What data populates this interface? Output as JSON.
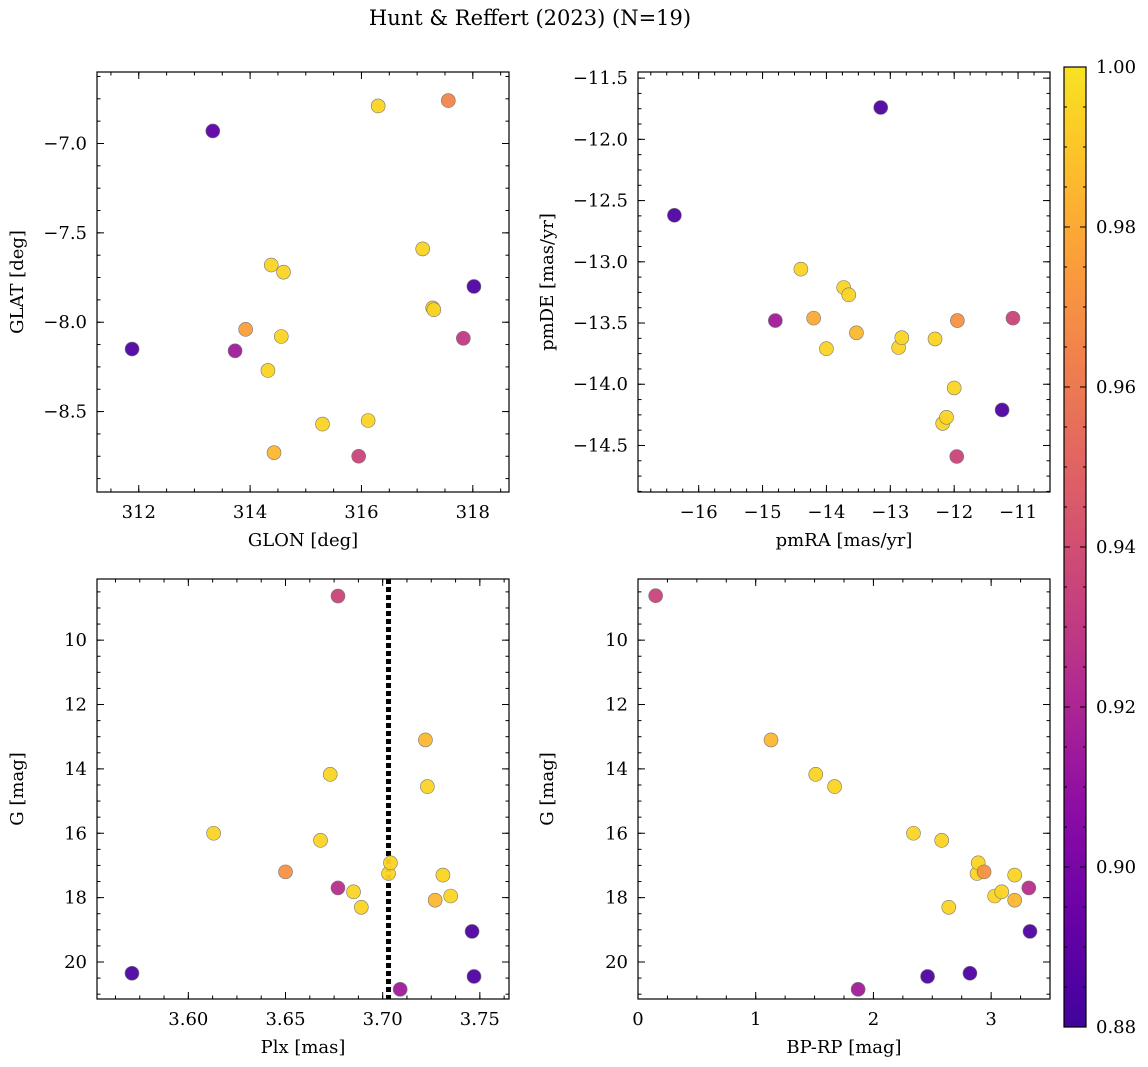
{
  "figure": {
    "title": "Hunt & Reffert (2023) (N=19)"
  },
  "colorbar": {
    "min": 0.88,
    "max": 1.0,
    "ticks": [
      0.88,
      0.9,
      0.92,
      0.94,
      0.96,
      0.98,
      1.0
    ],
    "tick_labels": [
      "0.88",
      "0.90",
      "0.92",
      "0.94",
      "0.96",
      "0.98",
      "1.00"
    ],
    "colormap": "plasma",
    "colormap_range": [
      0.1,
      0.95
    ]
  },
  "chart_data": [
    {
      "type": "scatter",
      "panel": "top-left",
      "xlabel": "GLON [deg]",
      "ylabel": "GLAT [deg]",
      "xlim": [
        311.25,
        318.65
      ],
      "ylim": [
        -8.95,
        -6.6
      ],
      "xticks": [
        312,
        314,
        316,
        318
      ],
      "xtick_labels": [
        "312",
        "314",
        "316",
        "318"
      ],
      "yticks": [
        -8.5,
        -8.0,
        -7.5,
        -7.0
      ],
      "ytick_labels": [
        "−8.5",
        "−8.0",
        "−7.5",
        "−7.0"
      ],
      "points": [
        {
          "x": 311.88,
          "y": -8.15,
          "c": 0.885
        },
        {
          "x": 313.33,
          "y": -6.93,
          "c": 0.89
        },
        {
          "x": 313.73,
          "y": -8.16,
          "c": 0.915
        },
        {
          "x": 313.92,
          "y": -8.04,
          "c": 0.975
        },
        {
          "x": 314.32,
          "y": -8.27,
          "c": 0.995
        },
        {
          "x": 314.38,
          "y": -7.68,
          "c": 0.995
        },
        {
          "x": 314.43,
          "y": -8.73,
          "c": 0.985
        },
        {
          "x": 314.56,
          "y": -8.08,
          "c": 0.995
        },
        {
          "x": 314.6,
          "y": -7.72,
          "c": 0.995
        },
        {
          "x": 315.3,
          "y": -8.57,
          "c": 0.995
        },
        {
          "x": 315.95,
          "y": -8.75,
          "c": 0.935
        },
        {
          "x": 316.12,
          "y": -8.55,
          "c": 0.995
        },
        {
          "x": 316.3,
          "y": -6.79,
          "c": 0.995
        },
        {
          "x": 317.1,
          "y": -7.59,
          "c": 0.995
        },
        {
          "x": 317.28,
          "y": -7.92,
          "c": 0.995
        },
        {
          "x": 317.3,
          "y": -7.93,
          "c": 0.995
        },
        {
          "x": 317.56,
          "y": -6.76,
          "c": 0.965
        },
        {
          "x": 317.83,
          "y": -8.09,
          "c": 0.93
        },
        {
          "x": 318.02,
          "y": -7.8,
          "c": 0.885
        }
      ]
    },
    {
      "type": "scatter",
      "panel": "top-right",
      "xlabel": "pmRA [mas/yr]",
      "ylabel": "pmDE [mas/yr]",
      "xlim": [
        -16.95,
        -10.5
      ],
      "ylim": [
        -14.88,
        -11.45
      ],
      "xticks": [
        -16,
        -15,
        -14,
        -13,
        -12,
        -11
      ],
      "xtick_labels": [
        "−16",
        "−15",
        "−14",
        "−13",
        "−12",
        "−11"
      ],
      "yticks": [
        -14.5,
        -14.0,
        -13.5,
        -13.0,
        -12.5,
        -12.0,
        -11.5
      ],
      "ytick_labels": [
        "−14.5",
        "−14.0",
        "−13.5",
        "−13.0",
        "−12.5",
        "−12.0",
        "−11.5"
      ],
      "points": [
        {
          "x": -16.38,
          "y": -12.62,
          "c": 0.885
        },
        {
          "x": -14.8,
          "y": -13.48,
          "c": 0.915
        },
        {
          "x": -14.4,
          "y": -13.06,
          "c": 0.995
        },
        {
          "x": -14.2,
          "y": -13.46,
          "c": 0.98
        },
        {
          "x": -14.0,
          "y": -13.71,
          "c": 0.995
        },
        {
          "x": -13.73,
          "y": -13.21,
          "c": 0.995
        },
        {
          "x": -13.65,
          "y": -13.27,
          "c": 0.995
        },
        {
          "x": -13.53,
          "y": -13.58,
          "c": 0.985
        },
        {
          "x": -13.15,
          "y": -11.74,
          "c": 0.885
        },
        {
          "x": -12.87,
          "y": -13.7,
          "c": 0.995
        },
        {
          "x": -12.82,
          "y": -13.62,
          "c": 0.995
        },
        {
          "x": -12.3,
          "y": -13.63,
          "c": 0.995
        },
        {
          "x": -12.18,
          "y": -14.32,
          "c": 0.995
        },
        {
          "x": -12.12,
          "y": -14.27,
          "c": 0.995
        },
        {
          "x": -12.0,
          "y": -14.03,
          "c": 0.995
        },
        {
          "x": -11.96,
          "y": -14.59,
          "c": 0.935
        },
        {
          "x": -11.95,
          "y": -13.48,
          "c": 0.97
        },
        {
          "x": -11.25,
          "y": -14.21,
          "c": 0.885
        },
        {
          "x": -11.08,
          "y": -13.46,
          "c": 0.935
        }
      ]
    },
    {
      "type": "scatter",
      "panel": "bottom-left",
      "xlabel": "Plx [mas]",
      "ylabel": "G [mag]",
      "xlim": [
        3.553,
        3.765
      ],
      "ylim": [
        21.15,
        8.1
      ],
      "y_inverted": true,
      "vline": 3.703,
      "xticks": [
        3.6,
        3.65,
        3.7,
        3.75
      ],
      "xtick_labels": [
        "3.60",
        "3.65",
        "3.70",
        "3.75"
      ],
      "yticks": [
        10,
        12,
        14,
        16,
        18,
        20
      ],
      "ytick_labels": [
        "10",
        "12",
        "14",
        "16",
        "18",
        "20"
      ],
      "points": [
        {
          "x": 3.571,
          "y": 20.35,
          "c": 0.885
        },
        {
          "x": 3.613,
          "y": 16.0,
          "c": 0.995
        },
        {
          "x": 3.65,
          "y": 17.2,
          "c": 0.97
        },
        {
          "x": 3.668,
          "y": 16.22,
          "c": 0.995
        },
        {
          "x": 3.673,
          "y": 14.17,
          "c": 0.995
        },
        {
          "x": 3.677,
          "y": 17.7,
          "c": 0.925
        },
        {
          "x": 3.677,
          "y": 8.63,
          "c": 0.935
        },
        {
          "x": 3.685,
          "y": 17.82,
          "c": 0.995
        },
        {
          "x": 3.689,
          "y": 18.3,
          "c": 0.995
        },
        {
          "x": 3.703,
          "y": 17.25,
          "c": 0.995
        },
        {
          "x": 3.704,
          "y": 16.92,
          "c": 0.995
        },
        {
          "x": 3.709,
          "y": 20.85,
          "c": 0.915
        },
        {
          "x": 3.722,
          "y": 13.1,
          "c": 0.985
        },
        {
          "x": 3.723,
          "y": 14.55,
          "c": 0.995
        },
        {
          "x": 3.727,
          "y": 18.08,
          "c": 0.985
        },
        {
          "x": 3.731,
          "y": 17.3,
          "c": 0.995
        },
        {
          "x": 3.735,
          "y": 17.95,
          "c": 0.995
        },
        {
          "x": 3.746,
          "y": 19.05,
          "c": 0.885
        },
        {
          "x": 3.747,
          "y": 20.45,
          "c": 0.885
        }
      ]
    },
    {
      "type": "scatter",
      "panel": "bottom-right",
      "xlabel": "BP-RP [mag]",
      "ylabel": "G [mag]",
      "xlim": [
        0,
        3.5
      ],
      "ylim": [
        21.15,
        8.1
      ],
      "y_inverted": true,
      "xticks": [
        0,
        1,
        2,
        3
      ],
      "xtick_labels": [
        "0",
        "1",
        "2",
        "3"
      ],
      "yticks": [
        10,
        12,
        14,
        16,
        18,
        20
      ],
      "ytick_labels": [
        "10",
        "12",
        "14",
        "16",
        "18",
        "20"
      ],
      "points": [
        {
          "x": 0.15,
          "y": 8.62,
          "c": 0.935
        },
        {
          "x": 1.13,
          "y": 13.1,
          "c": 0.985
        },
        {
          "x": 1.51,
          "y": 14.17,
          "c": 0.995
        },
        {
          "x": 1.67,
          "y": 14.55,
          "c": 0.995
        },
        {
          "x": 1.87,
          "y": 20.85,
          "c": 0.915
        },
        {
          "x": 2.34,
          "y": 16.0,
          "c": 0.995
        },
        {
          "x": 2.46,
          "y": 20.45,
          "c": 0.885
        },
        {
          "x": 2.58,
          "y": 16.22,
          "c": 0.995
        },
        {
          "x": 2.64,
          "y": 18.3,
          "c": 0.995
        },
        {
          "x": 2.82,
          "y": 20.35,
          "c": 0.885
        },
        {
          "x": 2.88,
          "y": 17.25,
          "c": 0.995
        },
        {
          "x": 2.89,
          "y": 16.92,
          "c": 0.995
        },
        {
          "x": 2.94,
          "y": 17.2,
          "c": 0.97
        },
        {
          "x": 3.03,
          "y": 17.95,
          "c": 0.995
        },
        {
          "x": 3.09,
          "y": 17.82,
          "c": 0.995
        },
        {
          "x": 3.2,
          "y": 18.08,
          "c": 0.985
        },
        {
          "x": 3.2,
          "y": 17.3,
          "c": 0.995
        },
        {
          "x": 3.32,
          "y": 17.7,
          "c": 0.925
        },
        {
          "x": 3.33,
          "y": 19.05,
          "c": 0.885
        }
      ]
    }
  ]
}
